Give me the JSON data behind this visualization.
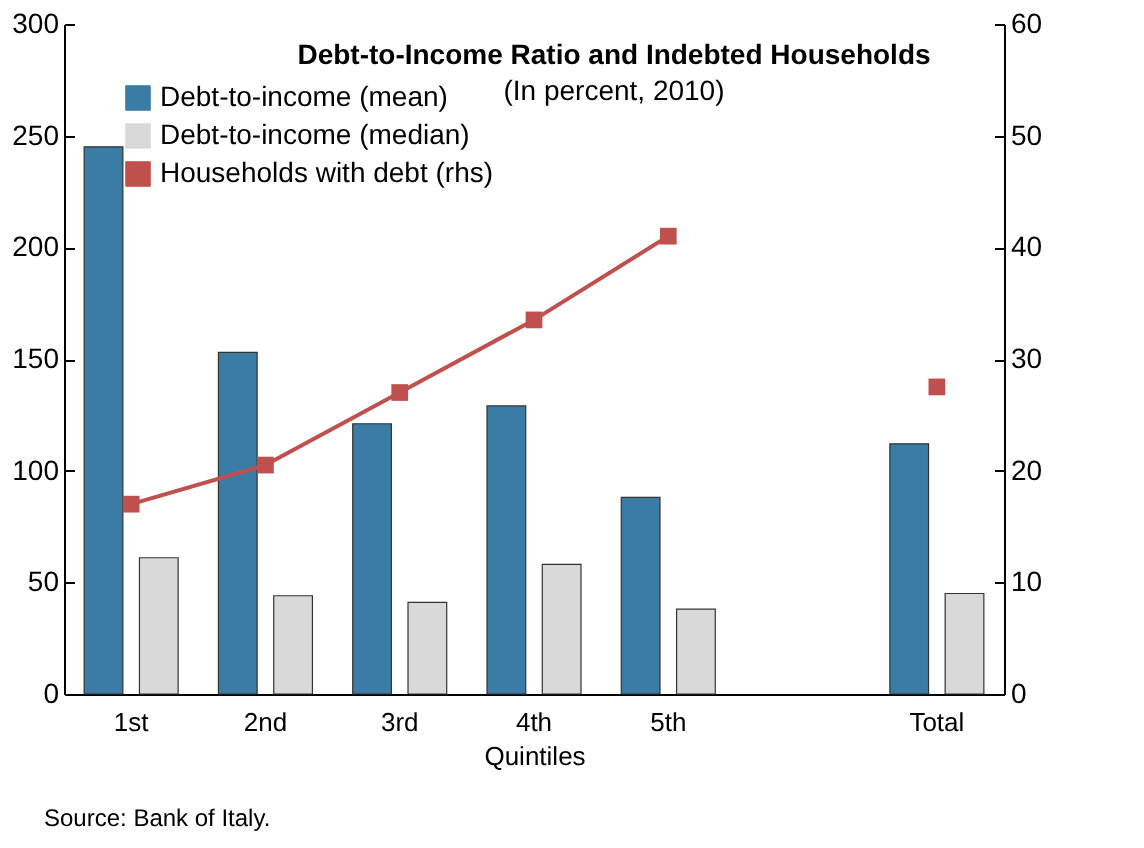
{
  "chart_data": {
    "type": "bar",
    "title": "Debt-to-Income Ratio and Indebted Households",
    "subtitle": "(In percent, 2010)",
    "xlabel": "Quintiles",
    "categories": [
      "1st",
      "2nd",
      "3rd",
      "4th",
      "5th",
      null,
      "Total"
    ],
    "series": [
      {
        "name": "Debt-to-income  (mean)",
        "color": "#3a7ca5",
        "values": [
          245,
          153,
          121,
          129,
          88,
          null,
          112
        ]
      },
      {
        "name": "Debt-to-income  (median)",
        "color": "#d9d9d9",
        "values": [
          61,
          44,
          41,
          58,
          38,
          null,
          45
        ]
      },
      {
        "name": "Households with  debt (rhs)",
        "type": "line",
        "axis": "y2",
        "color": "#c0504d",
        "marker": "square",
        "values": [
          17,
          20.5,
          27,
          33.5,
          41,
          null,
          27.5
        ]
      }
    ],
    "ylim": [
      0,
      300
    ],
    "yticks": [
      0,
      50,
      100,
      150,
      200,
      250,
      300
    ],
    "y2lim": [
      0,
      60
    ],
    "y2ticks": [
      0,
      10,
      20,
      30,
      40,
      50,
      60
    ],
    "grid": false,
    "legend": "top left",
    "annotations": [
      "Source: Bank of Italy."
    ]
  }
}
